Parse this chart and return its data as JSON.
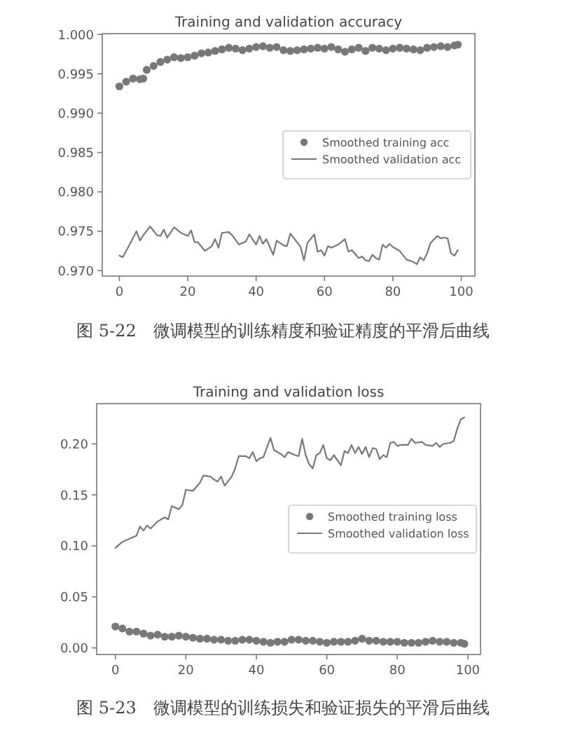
{
  "chart_data": [
    {
      "type": "line",
      "title": "Training and validation accuracy",
      "annotations": [
        "图 5-22　微调模型的训练精度和验证精度的平滑后曲线"
      ],
      "xlim": [
        -5,
        104
      ],
      "xticks": [
        0,
        20,
        40,
        60,
        80,
        100
      ],
      "ylim": [
        0.9693,
        1.0001
      ],
      "yticks": [
        {
          "value": 0.97,
          "label": "0.970"
        },
        {
          "value": 0.975,
          "label": "0.975"
        },
        {
          "value": 0.98,
          "label": "0.980"
        },
        {
          "value": 0.985,
          "label": "0.985"
        },
        {
          "value": 0.99,
          "label": "0.990"
        },
        {
          "value": 0.995,
          "label": "0.995"
        },
        {
          "value": 1.0,
          "label": "1.000"
        }
      ],
      "legend": "center right",
      "grid": false,
      "series": [
        {
          "name": "Smoothed training acc",
          "type": "scatter",
          "marker": "circle",
          "color": "#787878",
          "x": [
            0,
            2,
            4,
            6,
            7,
            8,
            10,
            12,
            14,
            16,
            18,
            20,
            22,
            24,
            26,
            28,
            30,
            32,
            34,
            36,
            38,
            40,
            42,
            44,
            46,
            48,
            50,
            52,
            54,
            56,
            58,
            60,
            62,
            64,
            66,
            68,
            70,
            72,
            74,
            76,
            78,
            80,
            82,
            84,
            86,
            88,
            90,
            92,
            94,
            96,
            98,
            99
          ],
          "values": [
            0.9934,
            0.994,
            0.9944,
            0.9943,
            0.9944,
            0.9955,
            0.996,
            0.9965,
            0.9968,
            0.9971,
            0.997,
            0.9971,
            0.9973,
            0.9976,
            0.9977,
            0.9979,
            0.9981,
            0.9983,
            0.9982,
            0.998,
            0.9982,
            0.9984,
            0.9985,
            0.9983,
            0.9984,
            0.998,
            0.9979,
            0.998,
            0.9981,
            0.9982,
            0.9983,
            0.9982,
            0.9984,
            0.9981,
            0.9978,
            0.9981,
            0.9983,
            0.9979,
            0.9983,
            0.9982,
            0.998,
            0.9982,
            0.9983,
            0.9982,
            0.9981,
            0.998,
            0.9983,
            0.9984,
            0.9985,
            0.9984,
            0.9986,
            0.9987
          ]
        },
        {
          "name": "Smoothed validation acc",
          "type": "line",
          "line_style": "solid",
          "color": "#787878",
          "x": [
            0,
            1,
            3,
            5,
            6,
            7,
            9,
            11,
            12,
            13,
            14,
            16,
            18,
            20,
            21,
            22,
            23,
            25,
            27,
            28,
            29,
            30,
            32,
            33,
            35,
            37,
            38,
            40,
            41,
            42,
            43,
            45,
            46,
            48,
            49,
            50,
            52,
            53,
            54,
            55,
            57,
            58,
            59,
            60,
            61,
            62,
            64,
            66,
            67,
            68,
            70,
            71,
            72,
            73,
            74,
            75,
            76,
            77,
            78,
            79,
            80,
            82,
            84,
            86,
            87,
            88,
            89,
            90,
            91,
            93,
            94,
            95,
            96,
            97,
            98,
            99
          ],
          "values": [
            0.9719,
            0.9717,
            0.9733,
            0.975,
            0.9738,
            0.9745,
            0.9756,
            0.9745,
            0.9744,
            0.9752,
            0.9742,
            0.9755,
            0.9748,
            0.9744,
            0.9751,
            0.9736,
            0.9736,
            0.9725,
            0.9731,
            0.974,
            0.9729,
            0.9748,
            0.9749,
            0.9745,
            0.9733,
            0.9737,
            0.9746,
            0.9733,
            0.9744,
            0.9734,
            0.974,
            0.972,
            0.9738,
            0.9732,
            0.9731,
            0.9747,
            0.9736,
            0.973,
            0.9713,
            0.9735,
            0.9746,
            0.9724,
            0.9726,
            0.9719,
            0.9731,
            0.9729,
            0.9733,
            0.974,
            0.9724,
            0.9726,
            0.9716,
            0.9718,
            0.9713,
            0.9712,
            0.972,
            0.9716,
            0.9714,
            0.9733,
            0.9729,
            0.9734,
            0.973,
            0.9725,
            0.9714,
            0.9711,
            0.9708,
            0.9717,
            0.9713,
            0.9722,
            0.9735,
            0.9744,
            0.9741,
            0.9742,
            0.9741,
            0.9722,
            0.9719,
            0.9726
          ]
        }
      ]
    },
    {
      "type": "line",
      "title": "Training and validation loss",
      "annotations": [
        "图 5-23　微调模型的训练损失和验证损失的平滑后曲线"
      ],
      "xlim": [
        -5.3,
        103.6
      ],
      "xticks": [
        0,
        20,
        40,
        60,
        80,
        100
      ],
      "ylim": [
        -0.0065,
        0.2395
      ],
      "yticks": [
        {
          "value": 0,
          "label": "0.00"
        },
        {
          "value": 0.05,
          "label": "0.05"
        },
        {
          "value": 0.1,
          "label": "0.10"
        },
        {
          "value": 0.15,
          "label": "0.15"
        },
        {
          "value": 0.2,
          "label": "0.20"
        }
      ],
      "legend": "center right",
      "grid": false,
      "series": [
        {
          "name": "Smoothed training loss",
          "type": "scatter",
          "marker": "circle",
          "color": "#787878",
          "x": [
            0,
            2,
            4,
            6,
            8,
            10,
            12,
            14,
            16,
            18,
            20,
            22,
            24,
            26,
            28,
            30,
            32,
            34,
            36,
            38,
            40,
            42,
            44,
            46,
            48,
            50,
            52,
            54,
            56,
            58,
            60,
            62,
            64,
            66,
            68,
            70,
            72,
            74,
            76,
            78,
            80,
            82,
            84,
            86,
            88,
            90,
            92,
            94,
            96,
            98,
            99
          ],
          "values": [
            0.021,
            0.019,
            0.016,
            0.016,
            0.014,
            0.012,
            0.013,
            0.011,
            0.011,
            0.012,
            0.011,
            0.01,
            0.009,
            0.009,
            0.008,
            0.008,
            0.007,
            0.007,
            0.008,
            0.008,
            0.007,
            0.006,
            0.005,
            0.006,
            0.006,
            0.008,
            0.008,
            0.007,
            0.007,
            0.006,
            0.005,
            0.006,
            0.006,
            0.006,
            0.007,
            0.009,
            0.007,
            0.007,
            0.006,
            0.006,
            0.006,
            0.005,
            0.005,
            0.005,
            0.006,
            0.007,
            0.006,
            0.006,
            0.005,
            0.005,
            0.004
          ]
        },
        {
          "name": "Smoothed validation loss",
          "type": "line",
          "line_style": "solid",
          "color": "#787878",
          "x": [
            0,
            2,
            4,
            6,
            7,
            8,
            9,
            10,
            12,
            14,
            15,
            16,
            18,
            19,
            20,
            22,
            24,
            25,
            27,
            28,
            29,
            30,
            31,
            33,
            34,
            35,
            37,
            38,
            39,
            40,
            41,
            42,
            44,
            45,
            47,
            48,
            49,
            51,
            52,
            53,
            54,
            55,
            56,
            57,
            58,
            59,
            60,
            61,
            62,
            63,
            64,
            65,
            66,
            67,
            68,
            69,
            70,
            71,
            72,
            73,
            74,
            75,
            76,
            77,
            78,
            79,
            80,
            81,
            83,
            84,
            85,
            87,
            88,
            90,
            91,
            92,
            93,
            95,
            96,
            97,
            98,
            99
          ],
          "values": [
            0.098,
            0.104,
            0.107,
            0.11,
            0.119,
            0.115,
            0.12,
            0.117,
            0.124,
            0.128,
            0.126,
            0.139,
            0.136,
            0.14,
            0.155,
            0.154,
            0.162,
            0.169,
            0.168,
            0.165,
            0.163,
            0.168,
            0.159,
            0.168,
            0.176,
            0.188,
            0.188,
            0.186,
            0.192,
            0.183,
            0.186,
            0.187,
            0.206,
            0.194,
            0.19,
            0.187,
            0.192,
            0.189,
            0.188,
            0.205,
            0.189,
            0.18,
            0.176,
            0.189,
            0.191,
            0.199,
            0.186,
            0.184,
            0.189,
            0.184,
            0.179,
            0.193,
            0.191,
            0.199,
            0.191,
            0.197,
            0.19,
            0.197,
            0.187,
            0.196,
            0.195,
            0.185,
            0.189,
            0.187,
            0.201,
            0.202,
            0.198,
            0.199,
            0.199,
            0.205,
            0.201,
            0.202,
            0.199,
            0.198,
            0.201,
            0.197,
            0.2,
            0.201,
            0.203,
            0.215,
            0.224,
            0.226
          ]
        }
      ]
    }
  ]
}
